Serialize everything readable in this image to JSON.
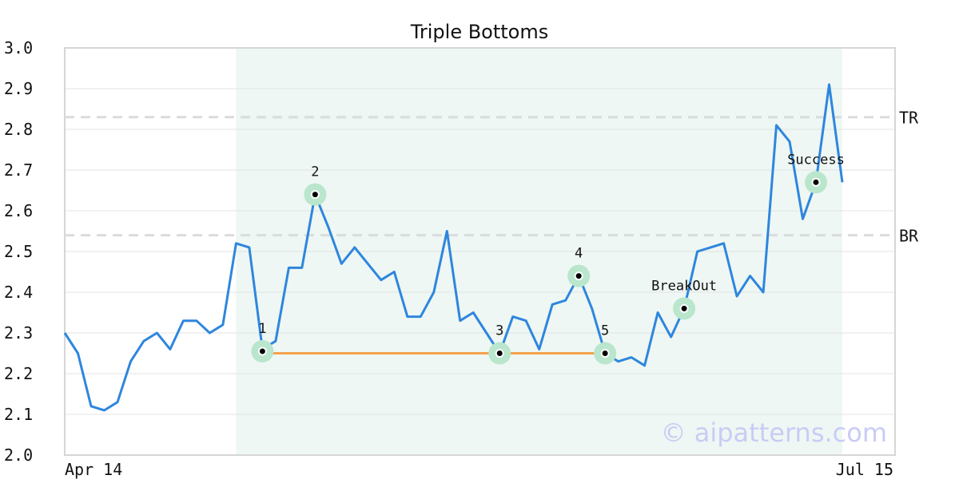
{
  "chart_data": {
    "type": "line",
    "title": "Triple Bottoms",
    "ylim": [
      2.0,
      3.0
    ],
    "yticks": [
      "2.0",
      "2.1",
      "2.2",
      "2.3",
      "2.4",
      "2.5",
      "2.6",
      "2.7",
      "2.8",
      "2.9",
      "3.0"
    ],
    "x_labels": {
      "start": "Apr 14",
      "end": "Jul 15"
    },
    "grid": "horizontal",
    "pattern_region": {
      "start_index": 13,
      "end_index": 59
    },
    "series": [
      {
        "color": "#2e86de",
        "values": [
          2.3,
          2.25,
          2.12,
          2.11,
          2.13,
          2.23,
          2.28,
          2.3,
          2.26,
          2.33,
          2.33,
          2.3,
          2.32,
          2.52,
          2.51,
          2.26,
          2.28,
          2.46,
          2.46,
          2.64,
          2.56,
          2.47,
          2.51,
          2.47,
          2.43,
          2.45,
          2.34,
          2.34,
          2.4,
          2.55,
          2.33,
          2.35,
          2.3,
          2.25,
          2.34,
          2.33,
          2.26,
          2.37,
          2.38,
          2.44,
          2.36,
          2.25,
          2.23,
          2.24,
          2.22,
          2.35,
          2.29,
          2.36,
          2.5,
          2.51,
          2.52,
          2.39,
          2.44,
          2.4,
          2.81,
          2.77,
          2.58,
          2.67,
          2.91,
          2.67
        ]
      }
    ],
    "levels": [
      {
        "label": "TR",
        "value": 2.83
      },
      {
        "label": "BR",
        "value": 2.54
      }
    ],
    "support_line": {
      "value": 2.25,
      "start_index": 15,
      "end_index": 41,
      "color": "#f4a24a"
    },
    "points": [
      {
        "label": "1",
        "index": 15,
        "value": 2.255
      },
      {
        "label": "2",
        "index": 19,
        "value": 2.64
      },
      {
        "label": "3",
        "index": 33,
        "value": 2.25
      },
      {
        "label": "4",
        "index": 39,
        "value": 2.44
      },
      {
        "label": "5",
        "index": 41,
        "value": 2.25
      },
      {
        "label": "BreakOut",
        "index": 47,
        "value": 2.36
      },
      {
        "label": "Success",
        "index": 57,
        "value": 2.67
      }
    ],
    "colors": {
      "line": "#2e86de",
      "support": "#f4a24a",
      "highlight": "#eef7f3",
      "marker_halo": "#b9e6cc",
      "level_line": "#d9dcdf",
      "grid": "#e3e3e3",
      "frame": "#d6d6d6"
    }
  },
  "watermark": "© aipatterns.com"
}
